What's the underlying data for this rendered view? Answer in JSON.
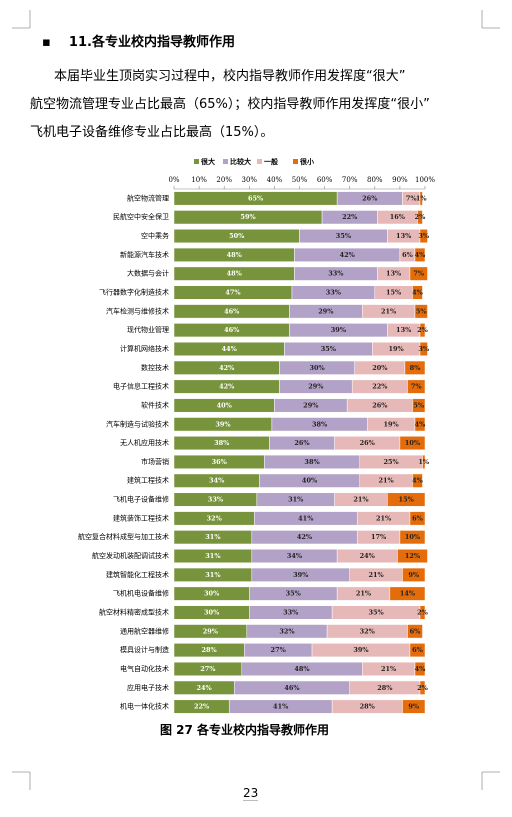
{
  "heading": "11.各专业校内指导教师作用",
  "paragraph": [
    "本届毕业生顶岗实习过程中，校内指导教师作用发挥度“很大”",
    "航空物流管理专业占比最高（65%）；校内指导教师作用发挥度“很小”",
    "飞机电子设备维修专业占比最高（15%）。"
  ],
  "chart_data": {
    "type": "stacked-barh",
    "categories": [
      "航空物流管理",
      "民航空中安全保卫",
      "空中乘务",
      "新能源汽车技术",
      "大数据与会计",
      "飞行器数字化制造技术",
      "汽车检测与维修技术",
      "现代物业管理",
      "计算机网络技术",
      "数控技术",
      "电子信息工程技术",
      "软件技术",
      "汽车制造与试验技术",
      "无人机应用技术",
      "市场营销",
      "建筑工程技术",
      "飞机电子设备维修",
      "建筑装饰工程技术",
      "航空复合材料成型与加工技术",
      "航空发动机装配调试技术",
      "建筑智能化工程技术",
      "飞机机电设备维修",
      "航空材料精密成型技术",
      "通用航空器维修",
      "模具设计与制造",
      "电气自动化技术",
      "应用电子技术",
      "机电一体化技术"
    ],
    "series": [
      {
        "name": "很大",
        "color": "#77933c",
        "values": [
          65,
          59,
          50,
          48,
          48,
          47,
          46,
          46,
          44,
          42,
          42,
          40,
          39,
          38,
          36,
          34,
          33,
          32,
          31,
          31,
          31,
          30,
          30,
          29,
          28,
          27,
          24,
          22
        ],
        "value_labels": [
          "65%",
          "59%",
          "50%",
          "48%",
          "48%",
          "47%",
          "46%",
          "46%",
          "44%",
          "42%",
          "42%",
          "40%",
          "39%",
          "38%",
          "36%",
          "34%",
          "33%",
          "32%",
          "31%",
          "31%",
          "31%",
          "30%",
          "30%",
          "29%",
          "28%",
          "27%",
          "24%",
          "22%"
        ]
      },
      {
        "name": "比较大",
        "color": "#b3a2c7",
        "values": [
          26,
          22,
          35,
          42,
          33,
          33,
          29,
          39,
          35,
          30,
          29,
          29,
          38,
          26,
          38,
          40,
          31,
          41,
          42,
          34,
          39,
          35,
          33,
          32,
          27,
          48,
          46,
          41
        ],
        "value_labels": [
          "26%",
          "22%",
          "35%",
          "42%",
          "33%",
          "33%",
          "29%",
          "39%",
          "35%",
          "30%",
          "29%",
          "29%",
          "38%",
          "26%",
          "38%",
          "40%",
          "31%",
          "41%",
          "42%",
          "34%",
          "39%",
          "35%",
          "33%",
          "32%",
          "27%",
          "48%",
          "46%",
          "41%"
        ]
      },
      {
        "name": "一般",
        "color": "#e6b9b8",
        "values": [
          7,
          16,
          13,
          6,
          13,
          15,
          21,
          13,
          19,
          20,
          22,
          26,
          19,
          26,
          25,
          21,
          21,
          21,
          17,
          24,
          21,
          21,
          35,
          32,
          39,
          21,
          28,
          28
        ],
        "value_labels": [
          "7%",
          "16%",
          "13%",
          "6%",
          "13%",
          "15%",
          "21%",
          "13%",
          "19%",
          "20%",
          "22%",
          "26%",
          "19%",
          "26%",
          "25%",
          "21%",
          "21%",
          "21%",
          "17%",
          "24%",
          "21%",
          "21%",
          "35%",
          "32%",
          "39%",
          "21%",
          "28%",
          "28%"
        ]
      },
      {
        "name": "很小",
        "color": "#e46c0a",
        "values": [
          1,
          2,
          3,
          4,
          7,
          4,
          5,
          2,
          3,
          8,
          7,
          5,
          4,
          10,
          1,
          4,
          15,
          6,
          10,
          12,
          9,
          14,
          2,
          6,
          6,
          4,
          2,
          9
        ],
        "value_labels": [
          "1%",
          "2%",
          "3%",
          "4%",
          "7%",
          "4%",
          "5%",
          "2%",
          "3%",
          "8%",
          "7%",
          "5%",
          "4%",
          "10%",
          "1%",
          "4%",
          "15%",
          "6%",
          "10%",
          "12%",
          "9%",
          "14%",
          "2%",
          "6%",
          "6%",
          "4%",
          "2%",
          "9%"
        ]
      }
    ],
    "xlim": [
      0,
      100
    ],
    "xticks": [
      {
        "value": 0,
        "label": "0%"
      },
      {
        "value": 10,
        "label": "10%"
      },
      {
        "value": 20,
        "label": "20%"
      },
      {
        "value": 30,
        "label": "30%"
      },
      {
        "value": 40,
        "label": "40%"
      },
      {
        "value": 50,
        "label": "50%"
      },
      {
        "value": 60,
        "label": "60%"
      },
      {
        "value": 70,
        "label": "70%"
      },
      {
        "value": 80,
        "label": "80%"
      },
      {
        "value": 90,
        "label": "90%"
      },
      {
        "value": 100,
        "label": "100%"
      }
    ],
    "legend": "top"
  },
  "caption": "图 27  各专业校内指导教师作用",
  "page_number": "23"
}
